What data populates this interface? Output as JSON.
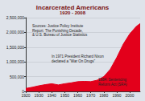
{
  "chart_data": {
    "type": "area",
    "title": "Incarcerated Americans",
    "subtitle": "1920 - 2008",
    "annotations": [
      "Sources: Justice Policy Institute\nReport: The Punishing Decade,\n& U.S. Bureau of Justice Statistics",
      "In 1971 President Richard Nixon\ndeclared a \"War On Drugs\"",
      "1984: Sentencing\nReform Act (SRA)"
    ],
    "x": [
      1920,
      1925,
      1930,
      1935,
      1940,
      1945,
      1950,
      1955,
      1960,
      1965,
      1970,
      1975,
      1980,
      1985,
      1990,
      1995,
      2000,
      2005,
      2008
    ],
    "values": [
      100000,
      140000,
      190000,
      230000,
      260000,
      220000,
      260000,
      290000,
      330000,
      340000,
      330000,
      380000,
      500000,
      750000,
      1150000,
      1600000,
      1950000,
      2200000,
      2300000
    ],
    "color": "#e3001b",
    "xlim": [
      1920,
      2008
    ],
    "xticks": [
      1920,
      1930,
      1940,
      1950,
      1960,
      1970,
      1980,
      1990,
      2000
    ],
    "ylim": [
      0,
      2500000
    ],
    "yticks": [
      0,
      {
        "value": 500000,
        "label": "500,000"
      },
      {
        "value": 1000000,
        "label": "1,000,000"
      },
      {
        "value": 1500000,
        "label": "1,500,000"
      },
      {
        "value": 2000000,
        "label": "2,000,000"
      },
      {
        "value": 2500000,
        "label": "2,500,000"
      }
    ],
    "grid": true
  }
}
